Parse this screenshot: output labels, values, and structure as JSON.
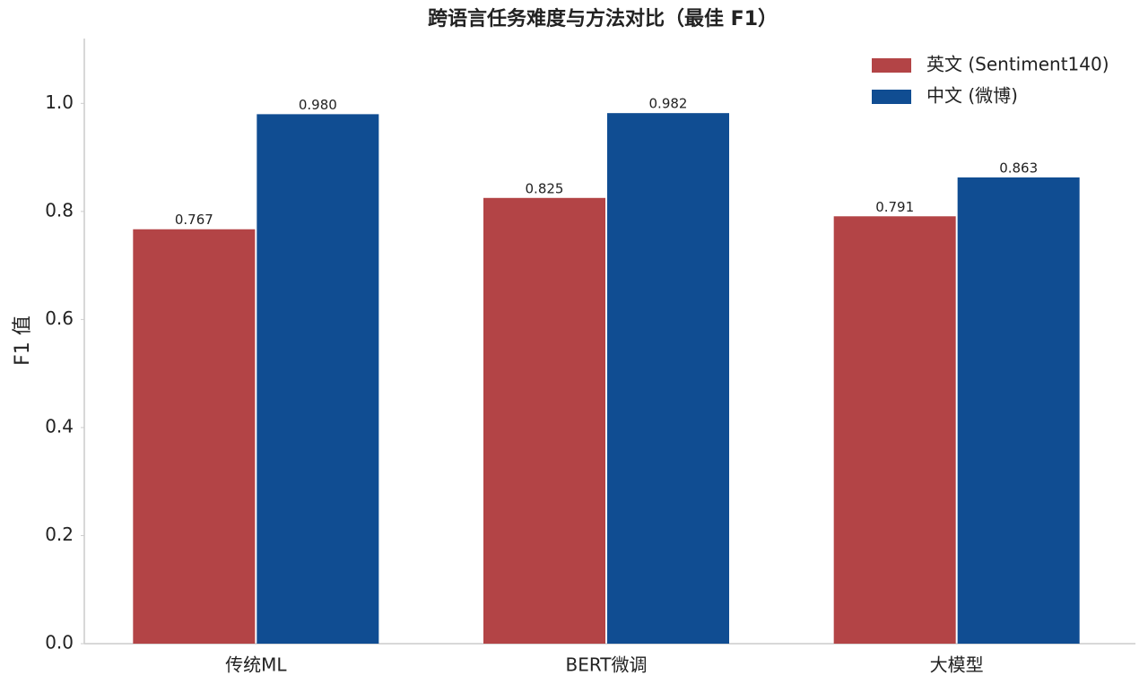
{
  "chart_data": {
    "type": "bar",
    "title": "跨语言任务难度与方法对比（最佳 F1）",
    "y_label": "F1 值",
    "categories": [
      "传统ML",
      "BERT微调",
      "大模型"
    ],
    "series": [
      {
        "name": "英文 (Sentiment140)",
        "color": "#b34446",
        "values": [
          0.767,
          0.825,
          0.791
        ],
        "value_labels": [
          "0.767",
          "0.825",
          "0.791"
        ]
      },
      {
        "name": "中文 (微博)",
        "color": "#104d92",
        "values": [
          0.98,
          0.982,
          0.863
        ],
        "value_labels": [
          "0.980",
          "0.982",
          "0.863"
        ]
      }
    ],
    "ylim": [
      0,
      1.12
    ],
    "yticks": [
      {
        "value": 0,
        "label": "0.0"
      },
      0.2,
      0.4,
      0.6,
      0.8,
      {
        "value": 1,
        "label": "1.0"
      }
    ],
    "grid": false,
    "legend": "upper-right"
  }
}
